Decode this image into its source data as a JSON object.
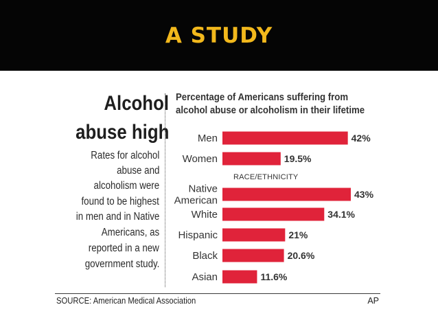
{
  "slide": {
    "title": "A STUDY"
  },
  "graphic": {
    "headline_line1": "Alcohol",
    "headline_line2": "abuse high",
    "description_lines": [
      "Rates for alcohol",
      "abuse and",
      "alcoholism were",
      "found to be highest",
      "in men and in Native",
      "Americans, as",
      "reported in a new",
      "government study."
    ],
    "source": "SOURCE: American Medical Association",
    "credit": "AP"
  },
  "chart_data": {
    "type": "bar",
    "orientation": "horizontal",
    "title_lines": [
      "Percentage of Americans suffering from",
      "alcohol abuse or alcoholism in their lifetime"
    ],
    "section_label": "RACE/ETHNICITY",
    "categories": [
      [
        "Men"
      ],
      [
        "Women"
      ],
      [
        "Native",
        "American"
      ],
      [
        "White"
      ],
      [
        "Hispanic"
      ],
      [
        "Black"
      ],
      [
        "Asian"
      ]
    ],
    "values": [
      42,
      19.5,
      43,
      34.1,
      21,
      20.6,
      11.6
    ],
    "value_labels": [
      "42%",
      "19.5%",
      "43%",
      "34.1%",
      "21%",
      "20.6%",
      "11.6%"
    ],
    "xlim": [
      0,
      43
    ],
    "bar_color": "#e0233a",
    "grid": false,
    "legend": "none"
  }
}
